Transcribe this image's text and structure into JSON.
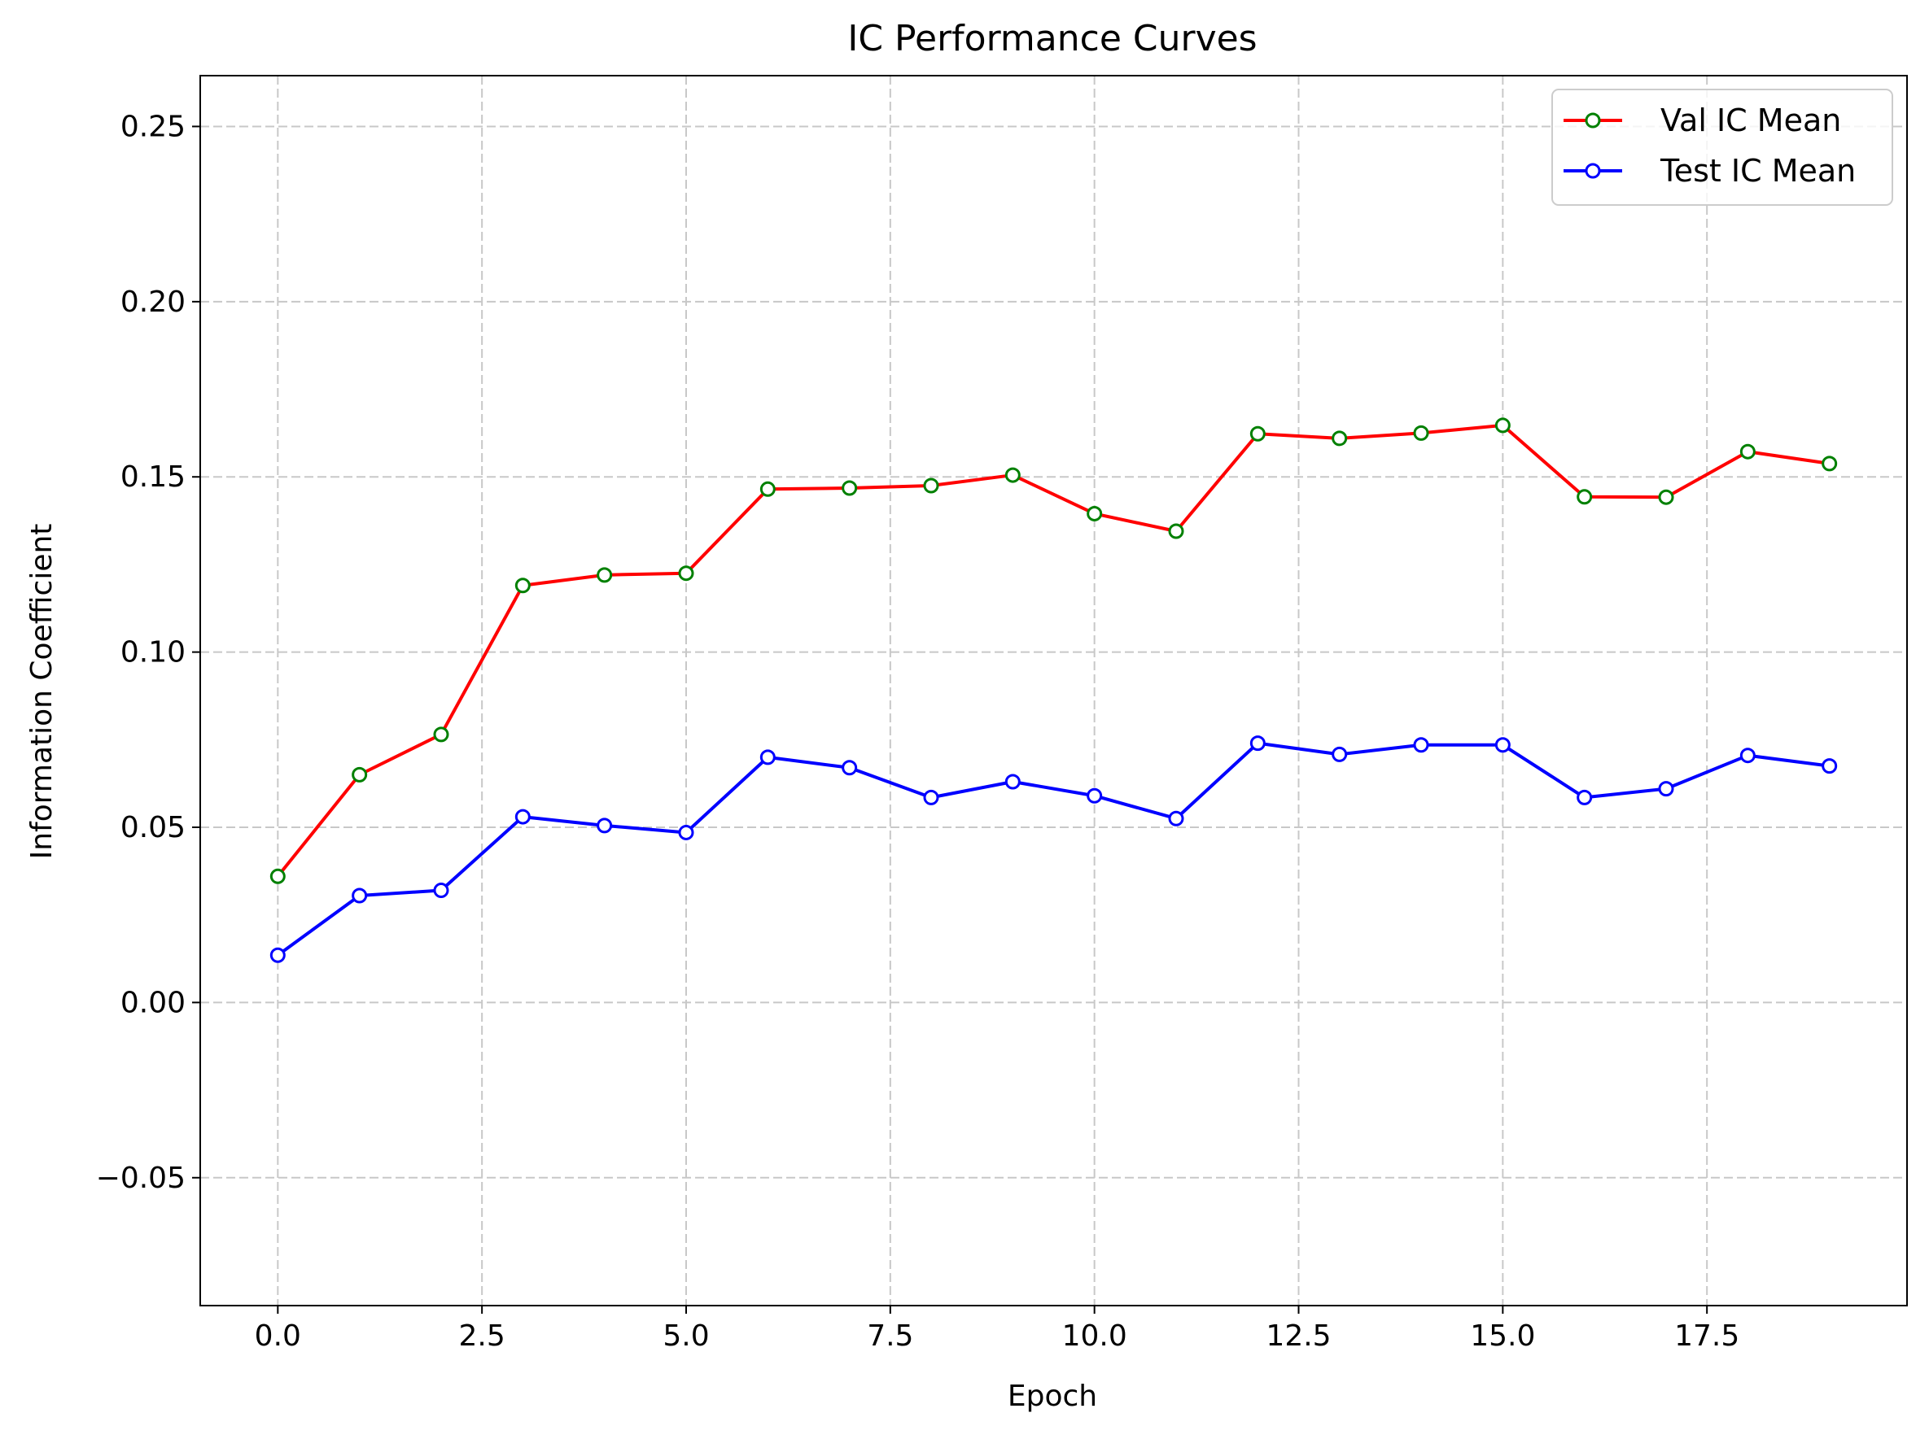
{
  "chart_data": {
    "type": "line",
    "title": "IC Performance Curves",
    "xlabel": "Epoch",
    "ylabel": "Information Coefficient",
    "xlim": [
      -0.95,
      19.95
    ],
    "ylim": [
      -0.0865,
      0.2645
    ],
    "x_ticks": [
      0.0,
      2.5,
      5.0,
      7.5,
      10.0,
      12.5,
      15.0,
      17.5
    ],
    "x_tick_labels": [
      "0.0",
      "2.5",
      "5.0",
      "7.5",
      "10.0",
      "12.5",
      "15.0",
      "17.5"
    ],
    "y_ticks": [
      -0.05,
      0.0,
      0.05,
      0.1,
      0.15,
      0.2,
      0.25
    ],
    "y_tick_labels": [
      "−0.05",
      "0.00",
      "0.05",
      "0.10",
      "0.15",
      "0.20",
      "0.25"
    ],
    "grid": true,
    "legend_position": "top-right",
    "x": [
      0,
      1,
      2,
      3,
      4,
      5,
      6,
      7,
      8,
      9,
      10,
      11,
      12,
      13,
      14,
      15,
      16,
      17,
      18,
      19
    ],
    "series": [
      {
        "name": "Val IC Mean",
        "line_color": "#ff0000",
        "marker_edge_color": "#008000",
        "marker_face_color": "#ffffff",
        "values": [
          0.036,
          0.065,
          0.0765,
          0.119,
          0.122,
          0.1225,
          0.1465,
          0.1468,
          0.1475,
          0.1505,
          0.1395,
          0.1345,
          0.1623,
          0.161,
          0.1625,
          0.1647,
          0.1443,
          0.1442,
          0.1572,
          0.1538
        ]
      },
      {
        "name": "Test IC Mean",
        "line_color": "#0000ff",
        "marker_edge_color": "#0000ff",
        "marker_face_color": "#ffffff",
        "values": [
          0.0135,
          0.0305,
          0.032,
          0.053,
          0.0505,
          0.0485,
          0.07,
          0.067,
          0.0585,
          0.063,
          0.059,
          0.0525,
          0.074,
          0.0708,
          0.0735,
          0.0735,
          0.0585,
          0.061,
          0.0705,
          0.0675
        ]
      }
    ]
  }
}
